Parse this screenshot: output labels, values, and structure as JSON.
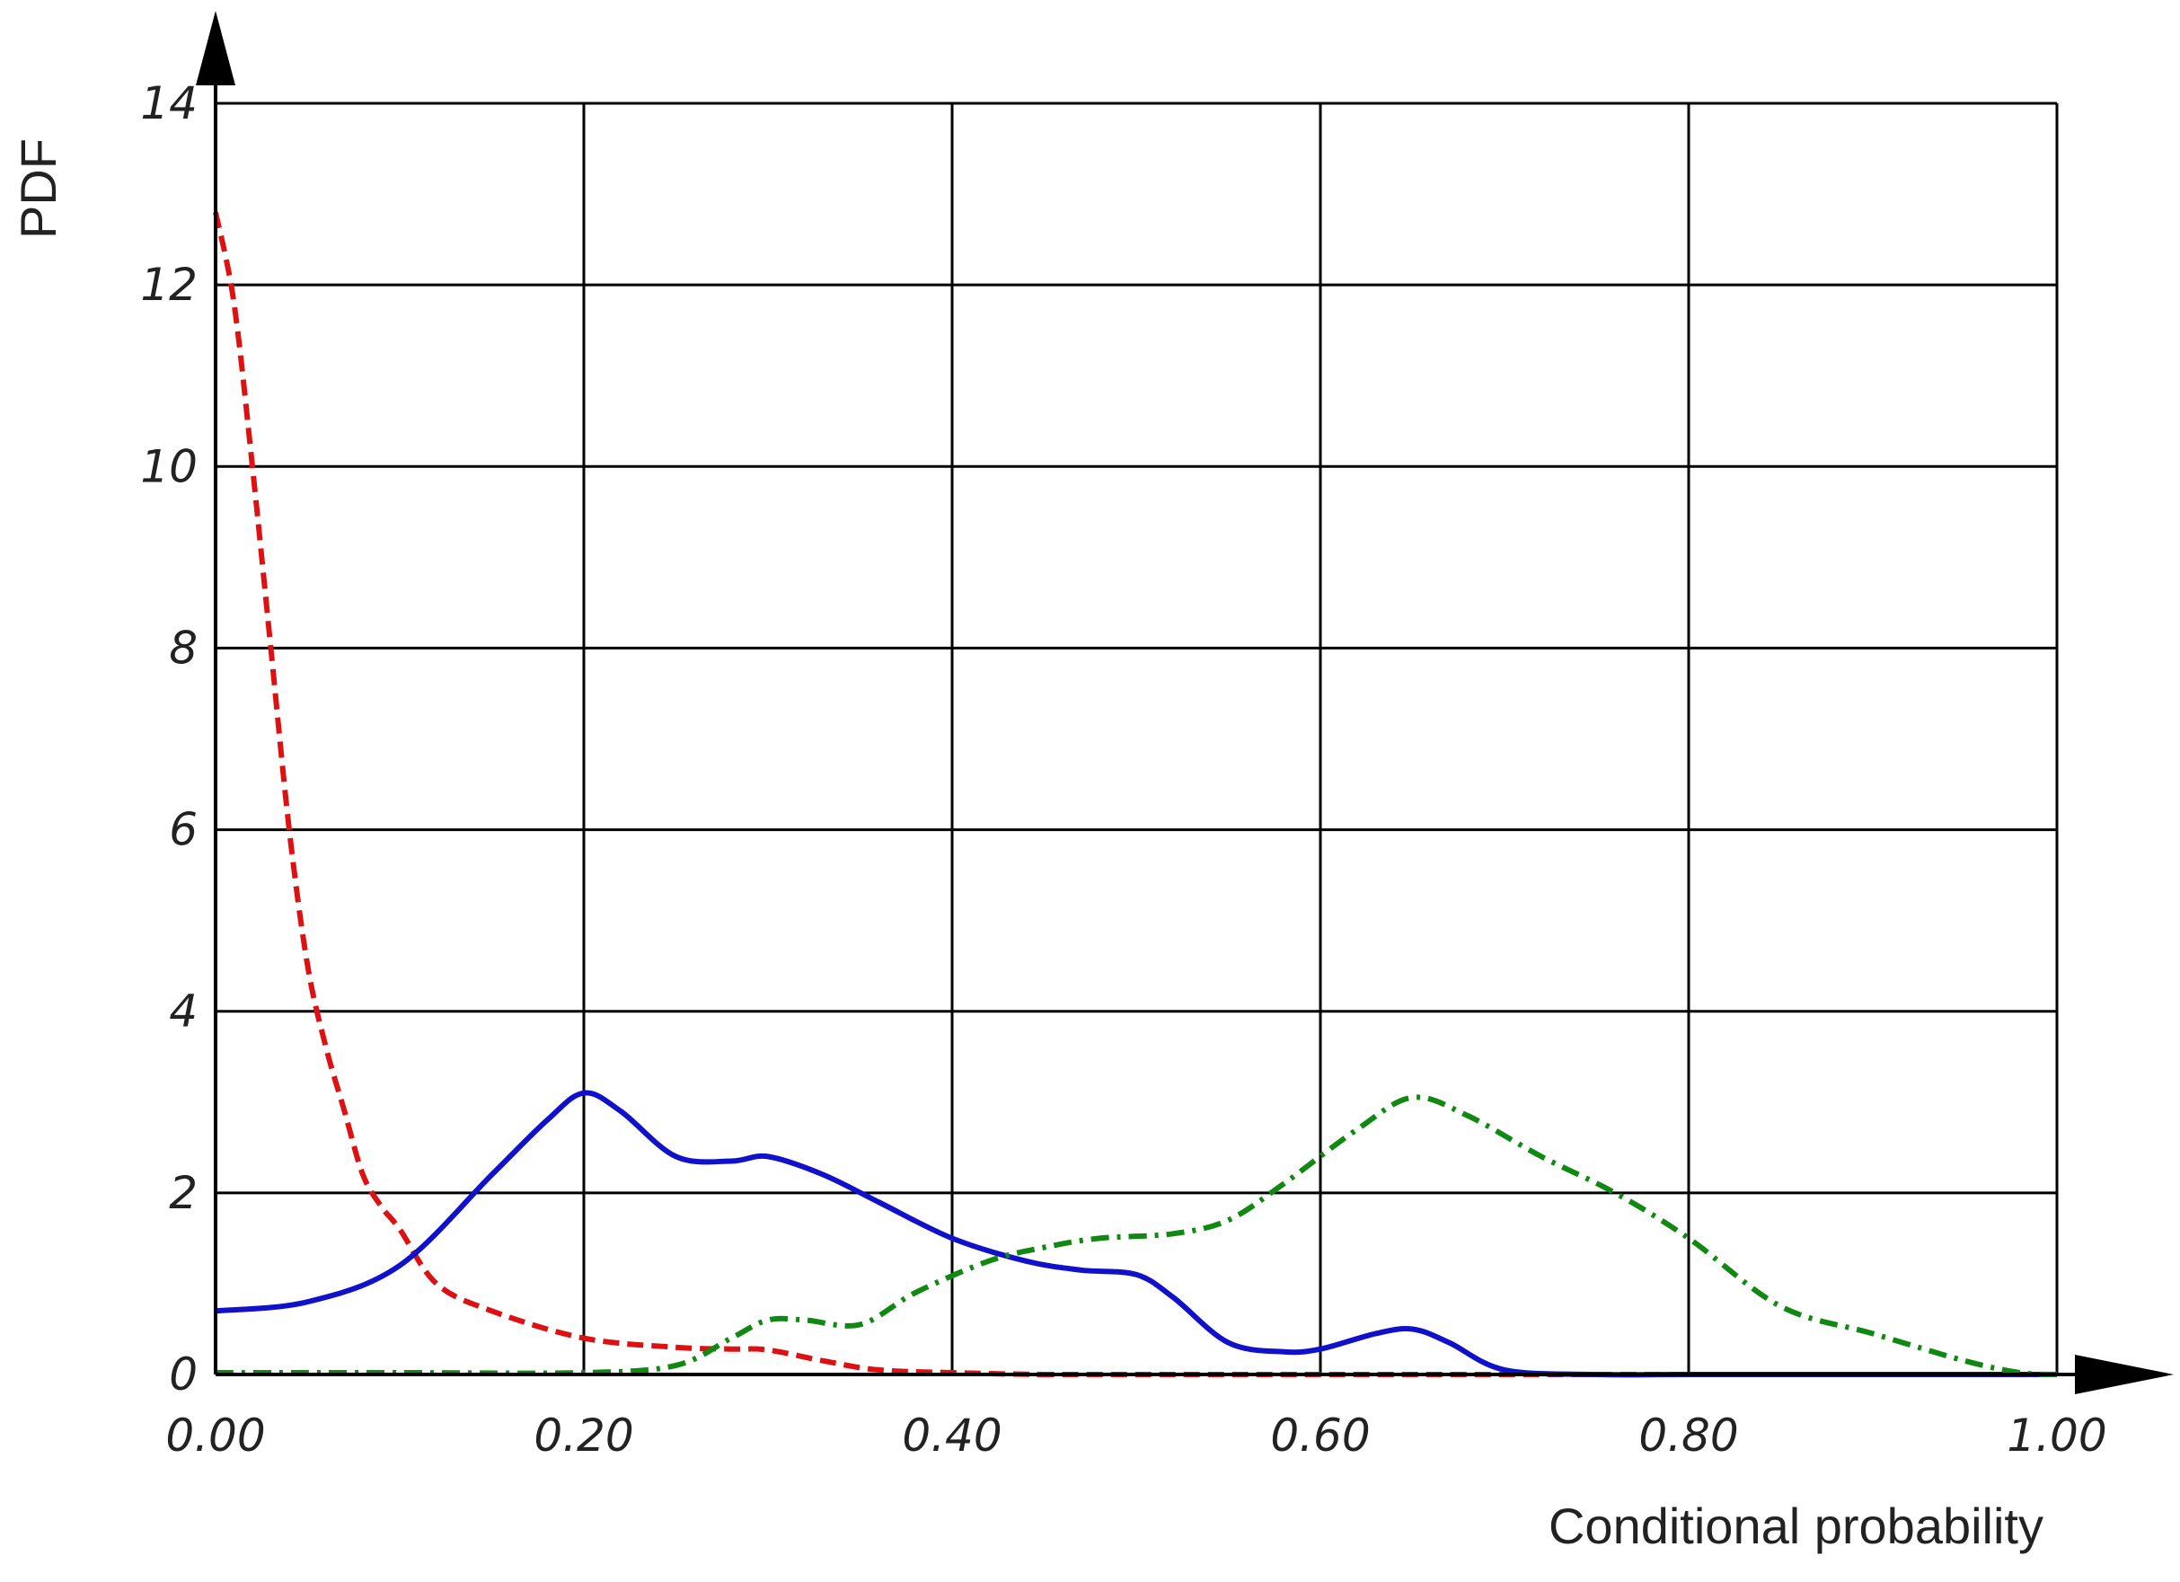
{
  "chart_data": {
    "type": "line",
    "title": "",
    "xlabel": "Conditional probability",
    "ylabel": "PDF",
    "xlim": [
      0,
      1
    ],
    "ylim": [
      0,
      14
    ],
    "grid": true,
    "x_ticks": [
      {
        "value": 0.0,
        "label": "0.00"
      },
      {
        "value": 0.2,
        "label": "0.20"
      },
      {
        "value": 0.4,
        "label": "0.40"
      },
      {
        "value": 0.6,
        "label": "0.60"
      },
      {
        "value": 0.8,
        "label": "0.80"
      },
      {
        "value": 1.0,
        "label": "1.00"
      }
    ],
    "y_ticks": [
      {
        "value": 0,
        "label": "0"
      },
      {
        "value": 2,
        "label": "2"
      },
      {
        "value": 4,
        "label": "4"
      },
      {
        "value": 6,
        "label": "6"
      },
      {
        "value": 8,
        "label": "8"
      },
      {
        "value": 10,
        "label": "10"
      },
      {
        "value": 12,
        "label": "12"
      },
      {
        "value": 14,
        "label": "14"
      }
    ],
    "series": [
      {
        "color": "#dd1111",
        "dash": "dashed",
        "x": [
          0.0,
          0.01,
          0.02,
          0.03,
          0.04,
          0.05,
          0.06,
          0.07,
          0.08,
          0.09,
          0.1,
          0.12,
          0.15,
          0.2,
          0.25,
          0.28,
          0.3,
          0.33,
          0.36,
          0.4,
          0.45,
          0.5,
          1.0
        ],
        "y": [
          12.8,
          11.8,
          10.0,
          8.0,
          6.0,
          4.5,
          3.6,
          2.9,
          2.2,
          1.85,
          1.6,
          1.0,
          0.7,
          0.4,
          0.3,
          0.28,
          0.27,
          0.15,
          0.05,
          0.02,
          0.0,
          0.0,
          0.0
        ]
      },
      {
        "color": "#1111cc",
        "dash": "solid",
        "x": [
          0.0,
          0.05,
          0.1,
          0.15,
          0.18,
          0.2,
          0.22,
          0.25,
          0.28,
          0.3,
          0.33,
          0.36,
          0.4,
          0.44,
          0.47,
          0.5,
          0.52,
          0.55,
          0.58,
          0.6,
          0.63,
          0.65,
          0.67,
          0.7,
          0.75,
          0.8,
          0.9,
          1.0
        ],
        "y": [
          0.7,
          0.8,
          1.2,
          2.2,
          2.8,
          3.1,
          2.9,
          2.4,
          2.35,
          2.4,
          2.2,
          1.9,
          1.5,
          1.25,
          1.15,
          1.1,
          0.85,
          0.35,
          0.25,
          0.28,
          0.45,
          0.5,
          0.35,
          0.05,
          0.0,
          0.0,
          0.0,
          0.0
        ]
      },
      {
        "color": "#118811",
        "dash": "dashdot",
        "x": [
          0.0,
          0.1,
          0.2,
          0.25,
          0.28,
          0.3,
          0.32,
          0.35,
          0.38,
          0.42,
          0.45,
          0.48,
          0.52,
          0.55,
          0.58,
          0.62,
          0.65,
          0.68,
          0.72,
          0.76,
          0.8,
          0.85,
          0.9,
          0.95,
          0.98,
          1.0
        ],
        "y": [
          0.02,
          0.02,
          0.02,
          0.1,
          0.4,
          0.6,
          0.6,
          0.55,
          0.9,
          1.25,
          1.4,
          1.5,
          1.55,
          1.7,
          2.1,
          2.7,
          3.05,
          2.85,
          2.4,
          2.0,
          1.5,
          0.75,
          0.45,
          0.15,
          0.02,
          0.0
        ]
      }
    ]
  }
}
